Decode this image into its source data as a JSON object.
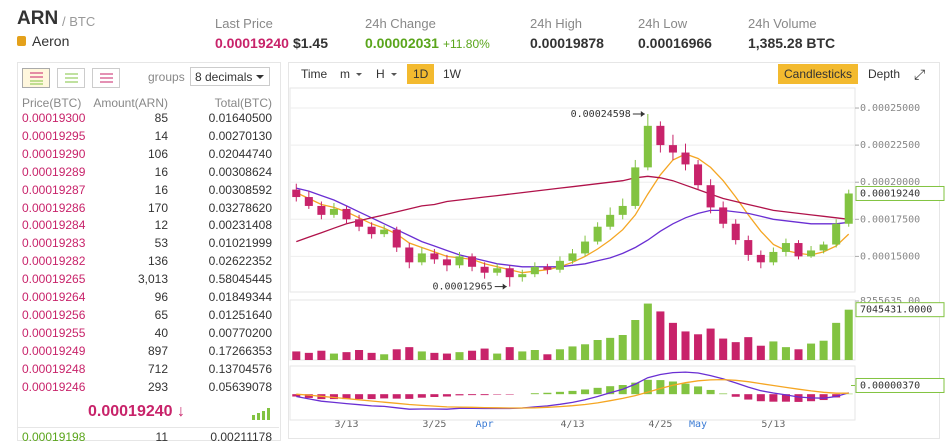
{
  "header": {
    "symbol": "ARN",
    "pair": "/ BTC",
    "name": "Aeron",
    "stats": [
      {
        "label": "Last Price",
        "value": "0.00019240",
        "extra": "$1.45"
      },
      {
        "label": "24h Change",
        "value": "0.00002031",
        "extra": "+11.80%"
      },
      {
        "label": "24h High",
        "value": "0.00019878"
      },
      {
        "label": "24h Low",
        "value": "0.00016966"
      },
      {
        "label": "24h Volume",
        "value": "1,385.28 BTC"
      }
    ]
  },
  "orderbook": {
    "groups_label": "groups",
    "decimals": "8 decimals",
    "columns": [
      "Price(BTC)",
      "Amount(ARN)",
      "Total(BTC)"
    ],
    "rows": [
      [
        "0.00019300",
        "85",
        "0.01640500"
      ],
      [
        "0.00019295",
        "14",
        "0.00270130"
      ],
      [
        "0.00019290",
        "106",
        "0.02044740"
      ],
      [
        "0.00019289",
        "16",
        "0.00308624"
      ],
      [
        "0.00019287",
        "16",
        "0.00308592"
      ],
      [
        "0.00019286",
        "170",
        "0.03278620"
      ],
      [
        "0.00019284",
        "12",
        "0.00231408"
      ],
      [
        "0.00019283",
        "53",
        "0.01021999"
      ],
      [
        "0.00019282",
        "136",
        "0.02622352"
      ],
      [
        "0.00019265",
        "3,013",
        "0.58045445"
      ],
      [
        "0.00019264",
        "96",
        "0.01849344"
      ],
      [
        "0.00019256",
        "65",
        "0.01251640"
      ],
      [
        "0.00019255",
        "40",
        "0.00770200"
      ],
      [
        "0.00019249",
        "897",
        "0.17266353"
      ],
      [
        "0.00019248",
        "712",
        "0.13704576"
      ],
      [
        "0.00019246",
        "293",
        "0.05639078"
      ]
    ],
    "last_price": "0.00019240 ↓",
    "next_row": [
      "0.00019198",
      "11",
      "0.00211178"
    ]
  },
  "toolbar": {
    "left": [
      "Time",
      "m",
      "H",
      "1D",
      "1W"
    ],
    "right": [
      "Candlesticks",
      "Depth"
    ]
  },
  "chart_data": [
    {
      "type": "candlestick",
      "up_color": "#82c341",
      "down_color": "#c8236a",
      "grid": true,
      "ylim": [
        0.000126,
        0.0002635
      ],
      "yticks": [
        {
          "value": 0.00025,
          "label": "0.00025000"
        },
        {
          "value": 0.000225,
          "label": "0.00022500"
        },
        {
          "value": 0.0002,
          "label": "0.00020000"
        },
        {
          "value": 0.000175,
          "label": "0.00017500"
        },
        {
          "value": 0.00015,
          "label": "0.00015000"
        }
      ],
      "categories": [
        null,
        null,
        null,
        null,
        "3/13",
        null,
        null,
        null,
        null,
        null,
        null,
        "3/25",
        null,
        null,
        null,
        "Apr",
        null,
        null,
        null,
        null,
        null,
        null,
        "4/13",
        null,
        null,
        null,
        null,
        null,
        null,
        "4/25",
        null,
        null,
        "May",
        null,
        null,
        null,
        null,
        null,
        "5/13",
        null,
        null,
        null,
        null,
        null,
        null
      ],
      "candles": [
        [
          0.000195,
          0.000199,
          0.000187,
          0.00019
        ],
        [
          0.00019,
          0.000194,
          0.000182,
          0.000184
        ],
        [
          0.000184,
          0.000187,
          0.000175,
          0.000178
        ],
        [
          0.000178,
          0.000186,
          0.000176,
          0.000182
        ],
        [
          0.000182,
          0.000184,
          0.000172,
          0.000175
        ],
        [
          0.000175,
          0.000178,
          0.000167,
          0.00017
        ],
        [
          0.00017,
          0.000173,
          0.000162,
          0.000165
        ],
        [
          0.000165,
          0.000171,
          0.000163,
          0.000168
        ],
        [
          0.000168,
          0.00017,
          0.000153,
          0.000156
        ],
        [
          0.000156,
          0.000159,
          0.000142,
          0.000146
        ],
        [
          0.000146,
          0.000156,
          0.000144,
          0.000152
        ],
        [
          0.000152,
          0.000155,
          0.000145,
          0.000148
        ],
        [
          0.000148,
          0.000151,
          0.00014,
          0.000144
        ],
        [
          0.000144,
          0.000153,
          0.000142,
          0.00015
        ],
        [
          0.00015,
          0.000152,
          0.00014,
          0.000143
        ],
        [
          0.000143,
          0.000146,
          0.000135,
          0.000139
        ],
        [
          0.000139,
          0.000145,
          0.000137,
          0.000142
        ],
        [
          0.000142,
          0.000144,
          0.00012965,
          0.000136
        ],
        [
          0.000136,
          0.000141,
          0.000133,
          0.000138
        ],
        [
          0.000138,
          0.000146,
          0.000136,
          0.000143
        ],
        [
          0.000143,
          0.000145,
          0.000138,
          0.000141
        ],
        [
          0.000141,
          0.00015,
          0.000139,
          0.000147
        ],
        [
          0.000147,
          0.000155,
          0.000145,
          0.000152
        ],
        [
          0.000152,
          0.000164,
          0.00015,
          0.00016
        ],
        [
          0.00016,
          0.000173,
          0.000158,
          0.00017
        ],
        [
          0.00017,
          0.000183,
          0.000168,
          0.000178
        ],
        [
          0.000178,
          0.000189,
          0.000175,
          0.000184
        ],
        [
          0.000184,
          0.000215,
          0.000182,
          0.00021
        ],
        [
          0.00021,
          0.00024598,
          0.000208,
          0.000238
        ],
        [
          0.000238,
          0.000241,
          0.00022,
          0.000225
        ],
        [
          0.000225,
          0.000232,
          0.000215,
          0.00022
        ],
        [
          0.00022,
          0.000226,
          0.000208,
          0.000212
        ],
        [
          0.000212,
          0.000215,
          0.000195,
          0.000198
        ],
        [
          0.000198,
          0.000202,
          0.000179,
          0.000183
        ],
        [
          0.000183,
          0.000187,
          0.000169,
          0.000172
        ],
        [
          0.000172,
          0.000175,
          0.000158,
          0.000161
        ],
        [
          0.000161,
          0.000164,
          0.000147,
          0.000151
        ],
        [
          0.000151,
          0.000154,
          0.000142,
          0.000146
        ],
        [
          0.000146,
          0.000156,
          0.000144,
          0.000153
        ],
        [
          0.000153,
          0.000162,
          0.00015,
          0.000159
        ],
        [
          0.000159,
          0.000161,
          0.000148,
          0.00015
        ],
        [
          0.00015,
          0.000157,
          0.000149,
          0.000154
        ],
        [
          0.000154,
          0.00016,
          0.000152,
          0.000158
        ],
        [
          0.000158,
          0.000175,
          0.000156,
          0.000172
        ],
        [
          0.000172,
          0.000195,
          0.00017,
          0.0001924
        ]
      ],
      "lines": [
        {
          "color": "#f5a623",
          "values": [
            0.000193,
            0.000189,
            0.000185,
            0.000183,
            0.00018,
            0.000176,
            0.000172,
            0.000169,
            0.000165,
            0.000159,
            0.000156,
            0.000153,
            0.00015,
            0.000149,
            0.000148,
            0.000145,
            0.000143,
            0.000141,
            0.000139,
            0.00014,
            0.000141,
            0.000143,
            0.000146,
            0.00015,
            0.000155,
            0.000161,
            0.000168,
            0.000178,
            0.000192,
            0.000205,
            0.000215,
            0.000219,
            0.000216,
            0.00021,
            0.000201,
            0.00019,
            0.000178,
            0.000167,
            0.000158,
            0.000154,
            0.000152,
            0.000151,
            0.000153,
            0.000157,
            0.000165
          ]
        },
        {
          "color": "#6a2fd3",
          "values": [
            0.000196,
            0.000194,
            0.000191,
            0.000188,
            0.000184,
            0.00018,
            0.000176,
            0.000172,
            0.000168,
            0.000164,
            0.00016,
            0.000157,
            0.000154,
            0.000151,
            0.000149,
            0.000147,
            0.000145,
            0.000144,
            0.000143,
            0.000143,
            0.000143,
            0.000143,
            0.000144,
            0.000145,
            0.000147,
            0.000149,
            0.000152,
            0.000156,
            0.000161,
            0.000167,
            0.000172,
            0.000176,
            0.000179,
            0.000181,
            0.000181,
            0.00018,
            0.000179,
            0.000177,
            0.000175,
            0.000174,
            0.000173,
            0.000172,
            0.000172,
            0.000172,
            0.000173
          ]
        },
        {
          "color": "#b0124a",
          "values": [
            0.00016,
            0.000163,
            0.000166,
            0.000169,
            0.000172,
            0.000174,
            0.000176,
            0.000178,
            0.00018,
            0.000182,
            0.000184,
            0.000185,
            0.000187,
            0.000188,
            0.000189,
            0.00019,
            0.000191,
            0.000192,
            0.000193,
            0.000194,
            0.000195,
            0.000196,
            0.000197,
            0.000198,
            0.000199,
            0.0002,
            0.000201,
            0.000203,
            0.000204,
            0.000203,
            0.000201,
            0.000198,
            0.000195,
            0.000192,
            0.000189,
            0.000187,
            0.000185,
            0.000183,
            0.000181,
            0.00018,
            0.000179,
            0.000178,
            0.000177,
            0.000176,
            0.000175
          ]
        }
      ],
      "last_label": "0.00019240",
      "high_label": "0.00024598",
      "low_label": "0.00012965"
    },
    {
      "type": "volume",
      "ylim": [
        0,
        8400000
      ],
      "yticks": [
        {
          "value": 8255635,
          "label": "8255635.00"
        }
      ],
      "values": [
        1200000,
        1000000,
        1300000,
        900000,
        1100000,
        1400000,
        1000000,
        800000,
        1500000,
        1800000,
        1200000,
        1000000,
        900000,
        1100000,
        1300000,
        1600000,
        900000,
        1800000,
        1200000,
        1400000,
        800000,
        1500000,
        1900000,
        2200000,
        2800000,
        3100000,
        3500000,
        5600000,
        7900000,
        6800000,
        5200000,
        4000000,
        3600000,
        4400000,
        3000000,
        2500000,
        3200000,
        2000000,
        2600000,
        1800000,
        1500000,
        2300000,
        2700000,
        5200000,
        7045431
      ],
      "last_label": "7045431.0000"
    },
    {
      "type": "macd",
      "up_color": "#82c341",
      "down_color": "#c8236a",
      "ylim": [
        -1.1e-05,
        1.2e-05
      ],
      "histogram": [
        -1e-06,
        -1.6e-06,
        -2.1e-06,
        -2.1e-06,
        -2.1e-06,
        -2.1e-06,
        -2.1e-06,
        -1.8e-06,
        -1.9e-06,
        -2e-06,
        -1.5e-06,
        -1.2e-06,
        -1e-06,
        -5e-07,
        -4e-07,
        -4e-07,
        -2e-07,
        -2e-07,
        0,
        4e-07,
        6e-07,
        1e-06,
        1.4e-06,
        2e-06,
        2.7e-06,
        3.4e-06,
        3.9e-06,
        4.9e-06,
        6.1e-06,
        6e-06,
        5.4e-06,
        4.5e-06,
        3.3e-06,
        1.8e-06,
        3e-07,
        -1.1e-06,
        -2.3e-06,
        -3e-06,
        -3.2e-06,
        -3.2e-06,
        -3.3e-06,
        -3e-06,
        -2.5e-06,
        -1.4e-06,
        2e-07
      ],
      "lines": [
        {
          "color": "#6a2fd3",
          "values": [
            -1e-06,
            -2e-06,
            -3e-06,
            -3.5e-06,
            -4e-06,
            -4.5e-06,
            -5e-06,
            -5.2e-06,
            -5.8e-06,
            -6.4e-06,
            -6.3e-06,
            -6.3e-06,
            -6.4e-06,
            -6e-06,
            -6e-06,
            -6.1e-06,
            -6e-06,
            -6.1e-06,
            -5.9e-06,
            -5.4e-06,
            -5e-06,
            -4.3e-06,
            -3.5e-06,
            -2.4e-06,
            -1e-06,
            6e-07,
            2.1e-06,
            4.3e-06,
            7e-06,
            8.4e-06,
            9.2e-06,
            9.4e-06,
            9e-06,
            7.9e-06,
            6.5e-06,
            4.8e-06,
            3e-06,
            1.5e-06,
            5e-07,
            -3e-07,
            -1.2e-06,
            -1.6e-06,
            -1.7e-06,
            -1e-06,
            6e-07
          ]
        },
        {
          "color": "#f5a623",
          "values": [
            0,
            -4e-07,
            -9e-07,
            -1.4e-06,
            -1.9e-06,
            -2.4e-06,
            -2.9e-06,
            -3.4e-06,
            -3.9e-06,
            -4.4e-06,
            -4.8e-06,
            -5.1e-06,
            -5.4e-06,
            -5.5e-06,
            -5.6e-06,
            -5.7e-06,
            -5.8e-06,
            -5.9e-06,
            -5.9e-06,
            -5.8e-06,
            -5.6e-06,
            -5.3e-06,
            -4.9e-06,
            -4.4e-06,
            -3.7e-06,
            -2.8e-06,
            -1.8e-06,
            -6e-07,
            9e-07,
            2.4e-06,
            3.8e-06,
            4.9e-06,
            5.7e-06,
            6.1e-06,
            6.2e-06,
            5.9e-06,
            5.3e-06,
            4.5e-06,
            3.7e-06,
            2.9e-06,
            2.1e-06,
            1.4e-06,
            8e-07,
            4e-07,
            4e-07
          ]
        }
      ],
      "current": {
        "value": 3.7e-06,
        "label": "0.00000370"
      }
    }
  ]
}
